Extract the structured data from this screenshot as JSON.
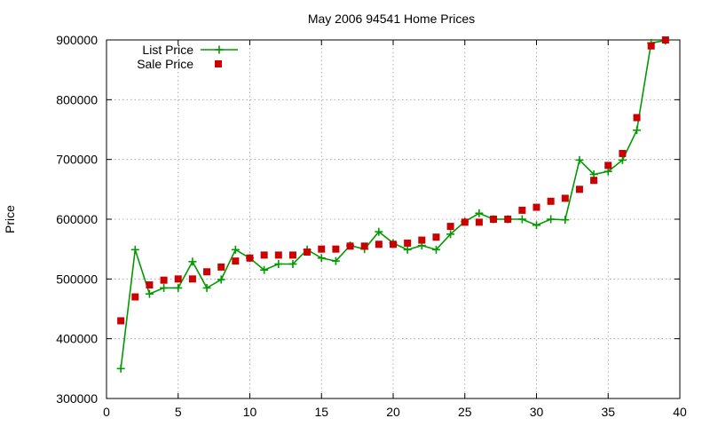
{
  "chart_data": {
    "type": "line",
    "title": "May 2006 94541 Home Prices",
    "xlabel": "",
    "ylabel": "Price",
    "xlim": [
      0,
      40
    ],
    "ylim": [
      300000,
      900000
    ],
    "x_ticks": [
      0,
      5,
      10,
      15,
      20,
      25,
      30,
      35,
      40
    ],
    "y_ticks": [
      300000,
      400000,
      500000,
      600000,
      700000,
      800000,
      900000
    ],
    "grid": true,
    "legend_position": "top-left",
    "series": [
      {
        "name": "List Price",
        "style": "line-with-plus-markers",
        "color": "#009900",
        "x": [
          1,
          2,
          3,
          4,
          5,
          6,
          7,
          8,
          9,
          10,
          11,
          12,
          13,
          14,
          15,
          16,
          17,
          18,
          19,
          20,
          21,
          22,
          23,
          24,
          25,
          26,
          27,
          28,
          29,
          30,
          31,
          32,
          33,
          34,
          35,
          36,
          37,
          38,
          39
        ],
        "values": [
          350000,
          549000,
          475000,
          485000,
          485000,
          529000,
          485000,
          499000,
          549000,
          535000,
          515000,
          525000,
          525000,
          549000,
          535000,
          530000,
          556000,
          550000,
          579000,
          560000,
          549000,
          556000,
          549000,
          575000,
          596000,
          610000,
          600000,
          600000,
          600000,
          590000,
          600000,
          599000,
          699000,
          675000,
          680000,
          699000,
          749000,
          895000,
          899000
        ]
      },
      {
        "name": "Sale Price",
        "style": "square-markers",
        "color": "#cc0000",
        "x": [
          1,
          2,
          3,
          4,
          5,
          6,
          7,
          8,
          9,
          10,
          11,
          12,
          13,
          14,
          15,
          16,
          17,
          18,
          19,
          20,
          21,
          22,
          23,
          24,
          25,
          26,
          27,
          28,
          29,
          30,
          31,
          32,
          33,
          34,
          35,
          36,
          37,
          38,
          39
        ],
        "values": [
          430000,
          470000,
          490000,
          498000,
          500000,
          500000,
          512000,
          520000,
          530000,
          535000,
          540000,
          540000,
          540000,
          545000,
          550000,
          550000,
          555000,
          555000,
          558000,
          558000,
          560000,
          565000,
          570000,
          588000,
          595000,
          595000,
          600000,
          600000,
          615000,
          620000,
          630000,
          635000,
          650000,
          665000,
          690000,
          710000,
          770000,
          890000,
          900000
        ]
      }
    ]
  }
}
